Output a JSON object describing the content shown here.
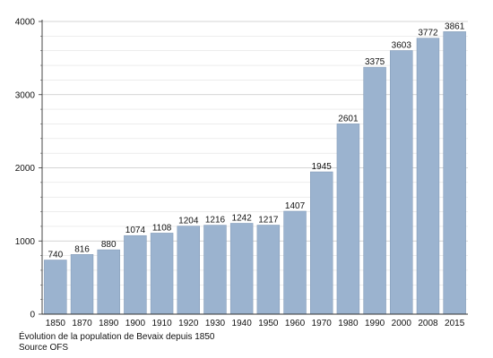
{
  "caption": {
    "line1": "Évolution de la population de Bevaix depuis 1850",
    "line2": "Source OFS"
  },
  "chart_data": {
    "type": "bar",
    "categories": [
      "1850",
      "1870",
      "1890",
      "1900",
      "1910",
      "1920",
      "1930",
      "1940",
      "1950",
      "1960",
      "1970",
      "1980",
      "1990",
      "2000",
      "2008",
      "2015"
    ],
    "values": [
      740,
      816,
      880,
      1074,
      1108,
      1204,
      1216,
      1242,
      1217,
      1407,
      1945,
      2601,
      3375,
      3603,
      3772,
      3861
    ],
    "ylim": [
      0,
      4000
    ],
    "yticks": [
      0,
      1000,
      2000,
      3000,
      4000
    ],
    "grid": true,
    "minor_gridlines": true,
    "bar_color": "#9bb3cf",
    "bar_edge_color": "#7f97b4",
    "grid_color": "#c8c8c8",
    "data_labels": true
  }
}
